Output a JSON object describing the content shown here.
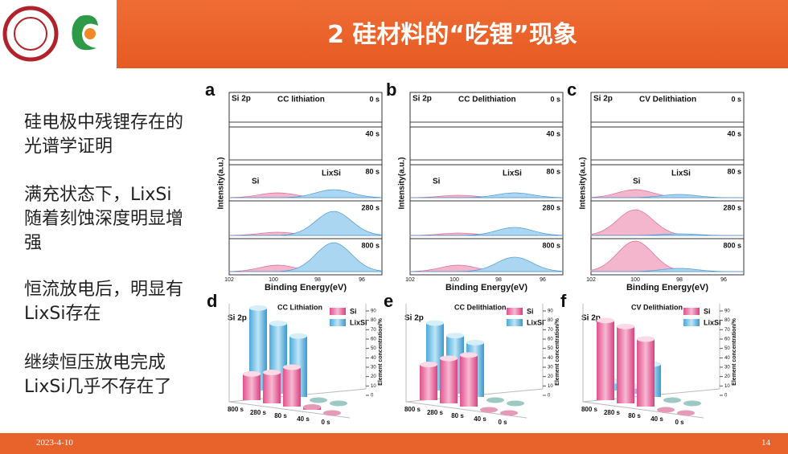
{
  "header": {
    "title": "2 硅材料的“吃锂”现象"
  },
  "bullets": [
    "硅电极中残锂存在的光谱学证明",
    "满充状态下，LixSi随着刻蚀深度明显增强",
    "恒流放电后，明显有LixSi存在",
    "继续恒压放电完成LixSi几乎不存在了"
  ],
  "spectra": [
    {
      "label": "a",
      "element": "Si 2p",
      "title": "CC lithiation",
      "times": [
        "0 s",
        "40 s",
        "80 s",
        "280 s",
        "800 s"
      ],
      "ylabel": "Intensity(a.u.)",
      "xlabel": "Binding Energy(eV)",
      "xticks": [
        "102",
        "100",
        "98",
        "96"
      ],
      "peaks": [
        "Si",
        "LixSi"
      ]
    },
    {
      "label": "b",
      "element": "Si 2p",
      "title": "CC Delithiation",
      "times": [
        "0 s",
        "40 s",
        "80 s",
        "280 s",
        "800 s"
      ],
      "ylabel": "Intensity(a.u.)",
      "xlabel": "Binding Energy(eV)",
      "xticks": [
        "102",
        "100",
        "98",
        "96"
      ],
      "peaks": [
        "Si",
        "LixSi"
      ]
    },
    {
      "label": "c",
      "element": "Si 2p",
      "title": "CV Delithiation",
      "times": [
        "0 s",
        "40 s",
        "80 s",
        "280 s",
        "800 s"
      ],
      "ylabel": "Intensity(a.u.)",
      "xlabel": "Binding Energy(eV)",
      "xticks": [
        "102",
        "100",
        "98",
        "96"
      ],
      "peaks": [
        "Si",
        "LixSi"
      ]
    }
  ],
  "bars": [
    {
      "label": "d",
      "element": "Si 2p",
      "title": "CC Lithiation",
      "legend": [
        "Si",
        "LixSi"
      ],
      "zlabel": "Element concentration/%",
      "zticks": [
        0,
        10,
        20,
        30,
        40,
        50,
        60,
        70,
        80,
        90
      ],
      "depths": [
        "800 s",
        "280 s",
        "80 s",
        "40 s",
        "0 s"
      ],
      "Si": [
        28,
        33,
        42,
        3,
        0
      ],
      "LixSi": [
        88,
        75,
        65,
        0,
        0
      ]
    },
    {
      "label": "e",
      "element": "Si 2p",
      "title": "CC Delithiation",
      "legend": [
        "Si",
        "LixSi"
      ],
      "zlabel": "Element concentration/%",
      "zticks": [
        0,
        10,
        20,
        30,
        40,
        50,
        60,
        70,
        80,
        90
      ],
      "depths": [
        "800 s",
        "280 s",
        "80 s",
        "40 s",
        "0 s"
      ],
      "Si": [
        38,
        48,
        55,
        0,
        0
      ],
      "LixSi": [
        72,
        62,
        58,
        0,
        0
      ]
    },
    {
      "label": "f",
      "element": "Si 2p",
      "title": "CV Delithiation",
      "legend": [
        "Si",
        "LixSi"
      ],
      "zlabel": "Element concentration/%",
      "zticks": [
        0,
        10,
        20,
        30,
        40,
        50,
        60,
        70,
        80,
        90
      ],
      "depths": [
        "800 s",
        "280 s",
        "80 s",
        "40 s",
        "0 s"
      ],
      "Si": [
        85,
        82,
        72,
        0,
        0
      ],
      "LixSi": [
        10,
        8,
        35,
        0,
        0
      ]
    }
  ],
  "footer": {
    "date": "2023-4-10",
    "page": "14"
  }
}
